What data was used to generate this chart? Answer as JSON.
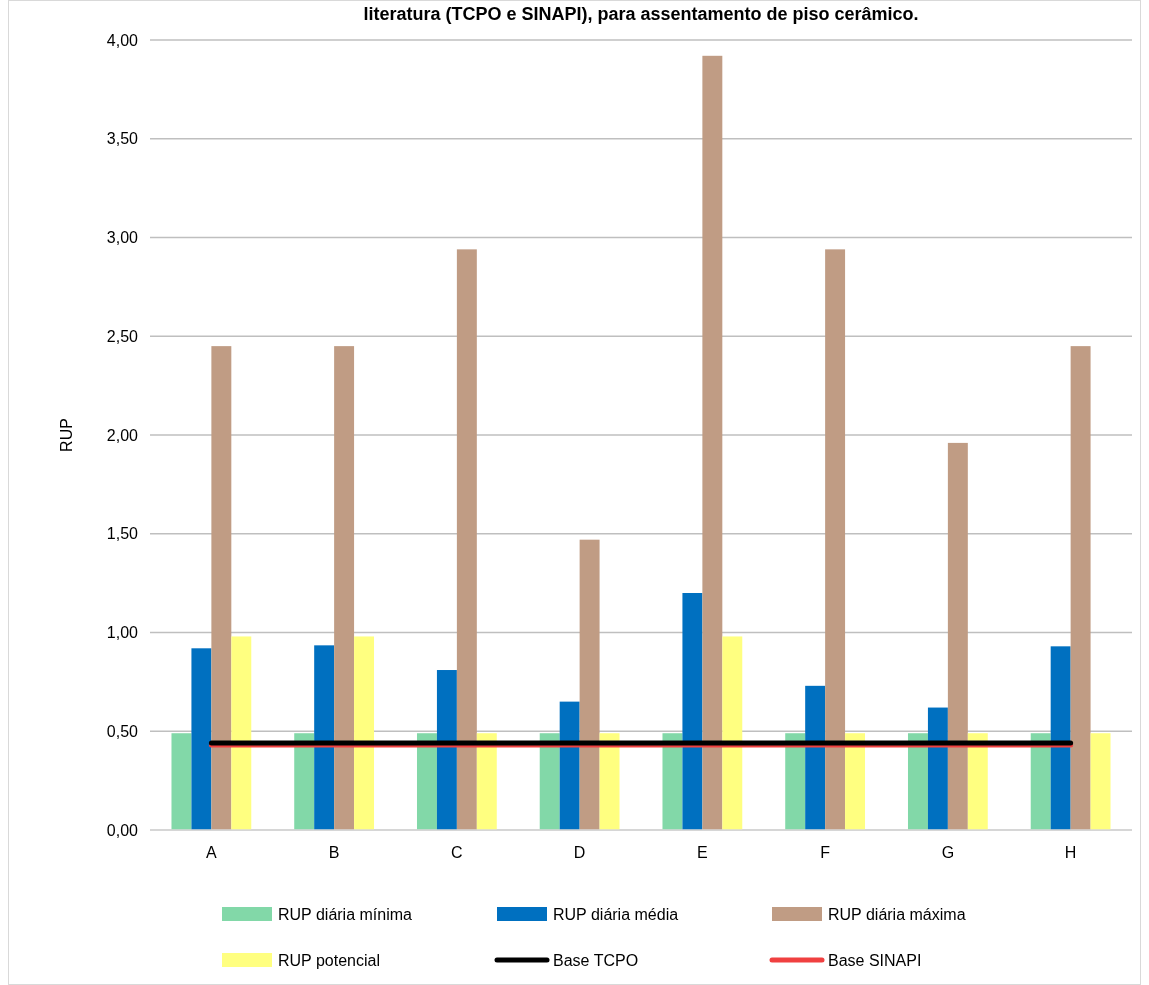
{
  "chart_data": {
    "type": "bar",
    "title": "literatura (TCPO e SINAPI), para assentamento de piso cerâmico.",
    "ylabel": "RUP",
    "categories": [
      "A",
      "B",
      "C",
      "D",
      "E",
      "F",
      "G",
      "H"
    ],
    "series": [
      {
        "name": "RUP diária mínima",
        "color": "#82d8a8",
        "values": [
          0.49,
          0.49,
          0.49,
          0.49,
          0.49,
          0.49,
          0.49,
          0.49
        ]
      },
      {
        "name": "RUP diária média",
        "color": "#0070c0",
        "values": [
          0.92,
          0.935,
          0.81,
          0.65,
          1.2,
          0.73,
          0.62,
          0.93
        ]
      },
      {
        "name": "RUP diária máxima",
        "color": "#c09c84",
        "values": [
          2.45,
          2.45,
          2.94,
          1.47,
          3.92,
          2.94,
          1.96,
          2.45
        ]
      },
      {
        "name": "RUP potencial",
        "color": "#ffff80",
        "values": [
          0.98,
          0.98,
          0.49,
          0.49,
          0.98,
          0.49,
          0.49,
          0.49
        ]
      },
      {
        "name": "Base TCPO",
        "type": "line",
        "color": "#000000",
        "values": [
          0.44,
          0.44,
          0.44,
          0.44,
          0.44,
          0.44,
          0.44,
          0.44
        ]
      },
      {
        "name": "Base SINAPI",
        "type": "line",
        "color": "#f04040",
        "values": [
          0.43,
          0.43,
          0.43,
          0.43,
          0.43,
          0.43,
          0.43,
          0.43
        ]
      }
    ],
    "ylim": [
      0,
      4
    ],
    "yticks": [
      {
        "value": 0,
        "label": "0,00"
      },
      {
        "value": 0.5,
        "label": "0,50"
      },
      {
        "value": 1,
        "label": "1,00"
      },
      {
        "value": 1.5,
        "label": "1,50"
      },
      {
        "value": 2,
        "label": "2,00"
      },
      {
        "value": 2.5,
        "label": "2,50"
      },
      {
        "value": 3,
        "label": "3,00"
      },
      {
        "value": 3.5,
        "label": "3,50"
      },
      {
        "value": 4,
        "label": "4,00"
      }
    ],
    "grid": "y",
    "legend": "bottom"
  }
}
